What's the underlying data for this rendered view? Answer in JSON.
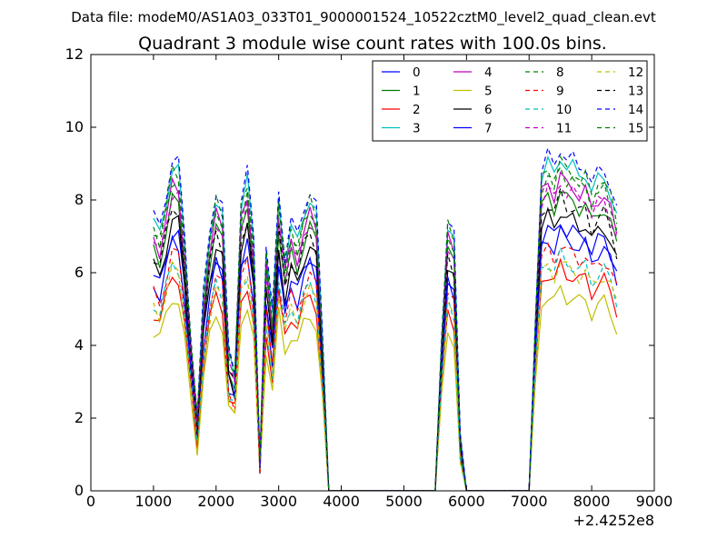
{
  "suptitle": "Data file: modeM0/AS1A03_033T01_9000001524_10522cztM0_level2_quad_clean.evt",
  "chart_data": {
    "type": "line",
    "title": "Quadrant 3 module wise count rates with 100.0s bins.",
    "xlabel": "",
    "ylabel": "",
    "x_offset_label": "+2.4252e8",
    "xlim": [
      0,
      9000
    ],
    "ylim": [
      0,
      12
    ],
    "xticks": [
      0,
      1000,
      2000,
      3000,
      4000,
      5000,
      6000,
      7000,
      8000,
      9000
    ],
    "yticks": [
      0,
      2,
      4,
      6,
      8,
      10,
      12
    ],
    "x": [
      1000,
      1100,
      1200,
      1300,
      1400,
      1500,
      1600,
      1700,
      1800,
      1900,
      2000,
      2100,
      2200,
      2300,
      2400,
      2500,
      2600,
      2700,
      2800,
      2900,
      3000,
      3100,
      3200,
      3300,
      3400,
      3500,
      3600,
      3700,
      3800,
      3900,
      4000,
      4100,
      4200,
      4300,
      4400,
      4500,
      4600,
      4700,
      4800,
      4900,
      5000,
      5100,
      5200,
      5300,
      5400,
      5500,
      5600,
      5700,
      5800,
      5900,
      6000,
      6100,
      6200,
      6300,
      6400,
      6500,
      6600,
      6700,
      6800,
      6900,
      7000,
      7100,
      7200,
      7300,
      7400,
      7500,
      7600,
      7700,
      7800,
      7900,
      8000,
      8100,
      8200,
      8300,
      8400
    ],
    "base_shape": [
      6.3,
      6.0,
      6.8,
      7.6,
      7.5,
      5.8,
      3.5,
      1.7,
      4.5,
      6.0,
      6.9,
      6.5,
      3.2,
      2.8,
      6.7,
      7.3,
      5.8,
      0.7,
      5.6,
      4.0,
      6.9,
      5.4,
      6.2,
      5.8,
      6.5,
      6.9,
      6.5,
      3.5,
      0.0,
      0.0,
      0.0,
      0.0,
      0.0,
      0.0,
      0.0,
      0.0,
      0.0,
      0.0,
      0.0,
      0.0,
      0.0,
      0.0,
      0.0,
      0.0,
      0.0,
      0.0,
      3.5,
      6.3,
      5.9,
      1.2,
      0.0,
      0.0,
      0.0,
      0.0,
      0.0,
      0.0,
      0.0,
      0.0,
      0.0,
      0.0,
      0.0,
      4.0,
      7.4,
      7.7,
      7.4,
      7.9,
      7.6,
      7.6,
      7.4,
      7.5,
      7.0,
      7.3,
      7.4,
      7.0,
      6.4
    ],
    "series": [
      {
        "name": "0",
        "color": "#0000ff",
        "dash": "solid",
        "scale": 0.94
      },
      {
        "name": "1",
        "color": "#008000",
        "dash": "solid",
        "scale": 1.05
      },
      {
        "name": "2",
        "color": "#ff0000",
        "dash": "solid",
        "scale": 0.78
      },
      {
        "name": "3",
        "color": "#00bfbf",
        "dash": "solid",
        "scale": 1.17
      },
      {
        "name": "4",
        "color": "#bf00bf",
        "dash": "solid",
        "scale": 1.1
      },
      {
        "name": "5",
        "color": "#bfbf00",
        "dash": "solid",
        "scale": 0.7
      },
      {
        "name": "6",
        "color": "#000000",
        "dash": "solid",
        "scale": 0.98
      },
      {
        "name": "7",
        "color": "#0000ff",
        "dash": "solid",
        "scale": 0.9
      },
      {
        "name": "8",
        "color": "#008000",
        "dash": "dashed",
        "scale": 1.13
      },
      {
        "name": "9",
        "color": "#ff0000",
        "dash": "dashed",
        "scale": 0.86
      },
      {
        "name": "10",
        "color": "#00bfbf",
        "dash": "dashed",
        "scale": 0.82
      },
      {
        "name": "11",
        "color": "#bf00bf",
        "dash": "dashed",
        "scale": 1.08
      },
      {
        "name": "12",
        "color": "#bfbf00",
        "dash": "dashed",
        "scale": 0.8
      },
      {
        "name": "13",
        "color": "#000000",
        "dash": "dashed",
        "scale": 1.03
      },
      {
        "name": "14",
        "color": "#0000ff",
        "dash": "dashed",
        "scale": 1.2
      },
      {
        "name": "15",
        "color": "#008000",
        "dash": "dashed",
        "scale": 1.15
      }
    ],
    "legend": {
      "location": "upper right",
      "columns": 4
    },
    "grid": false
  }
}
